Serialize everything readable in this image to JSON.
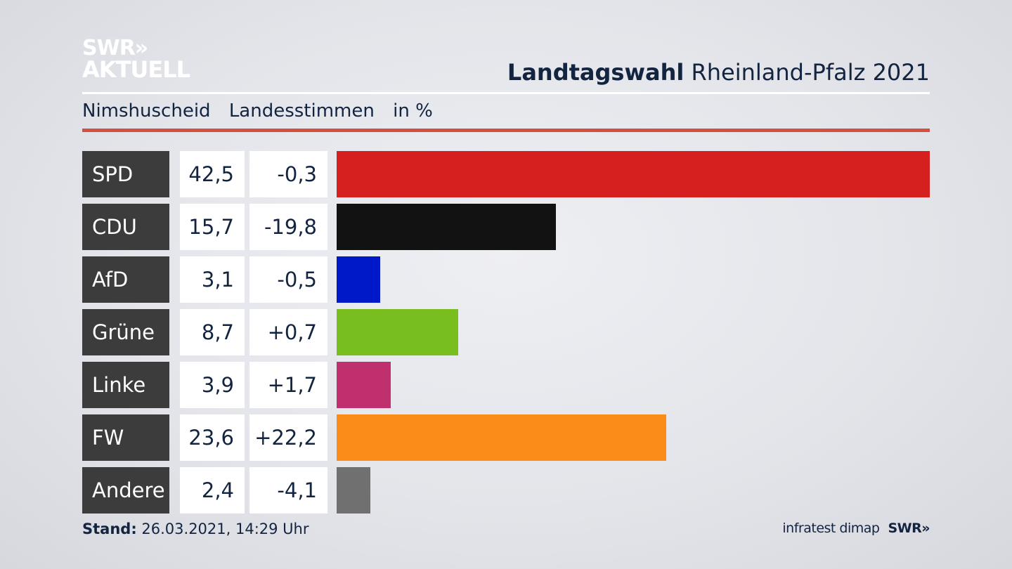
{
  "logo": {
    "line1": "SWR»",
    "line2": "AKTUELL"
  },
  "header": {
    "title_bold": "Landtagswahl",
    "title_rest": " Rheinland-Pfalz 2021"
  },
  "subheader": {
    "region": "Nimshuscheid",
    "measure": "Landesstimmen",
    "unit": "in %"
  },
  "footer": {
    "stand_label": "Stand:",
    "stand_value": " 26.03.2021, 14:29 Uhr",
    "source": "infratest dimap",
    "brand": "SWR»"
  },
  "chart_data": {
    "type": "bar",
    "orientation": "horizontal",
    "categories": [
      "SPD",
      "CDU",
      "AfD",
      "Grüne",
      "Linke",
      "FW",
      "Andere"
    ],
    "values": [
      42.5,
      15.7,
      3.1,
      8.7,
      3.9,
      23.6,
      2.4
    ],
    "value_labels": [
      "42,5",
      "15,7",
      "3,1",
      "8,7",
      "3,9",
      "23,6",
      "2,4"
    ],
    "changes": [
      -0.3,
      -19.8,
      -0.5,
      0.7,
      1.7,
      22.2,
      -4.1
    ],
    "change_labels": [
      "-0,3",
      "-19,8",
      "-0,5",
      "+0,7",
      "+1,7",
      "+22,2",
      "-4,1"
    ],
    "colors": [
      "#d62020",
      "#121212",
      "#0019c8",
      "#78be1e",
      "#c0306e",
      "#fb8c18",
      "#707070"
    ],
    "xlim": [
      0,
      42.5
    ],
    "grid": false,
    "legend": "none"
  }
}
